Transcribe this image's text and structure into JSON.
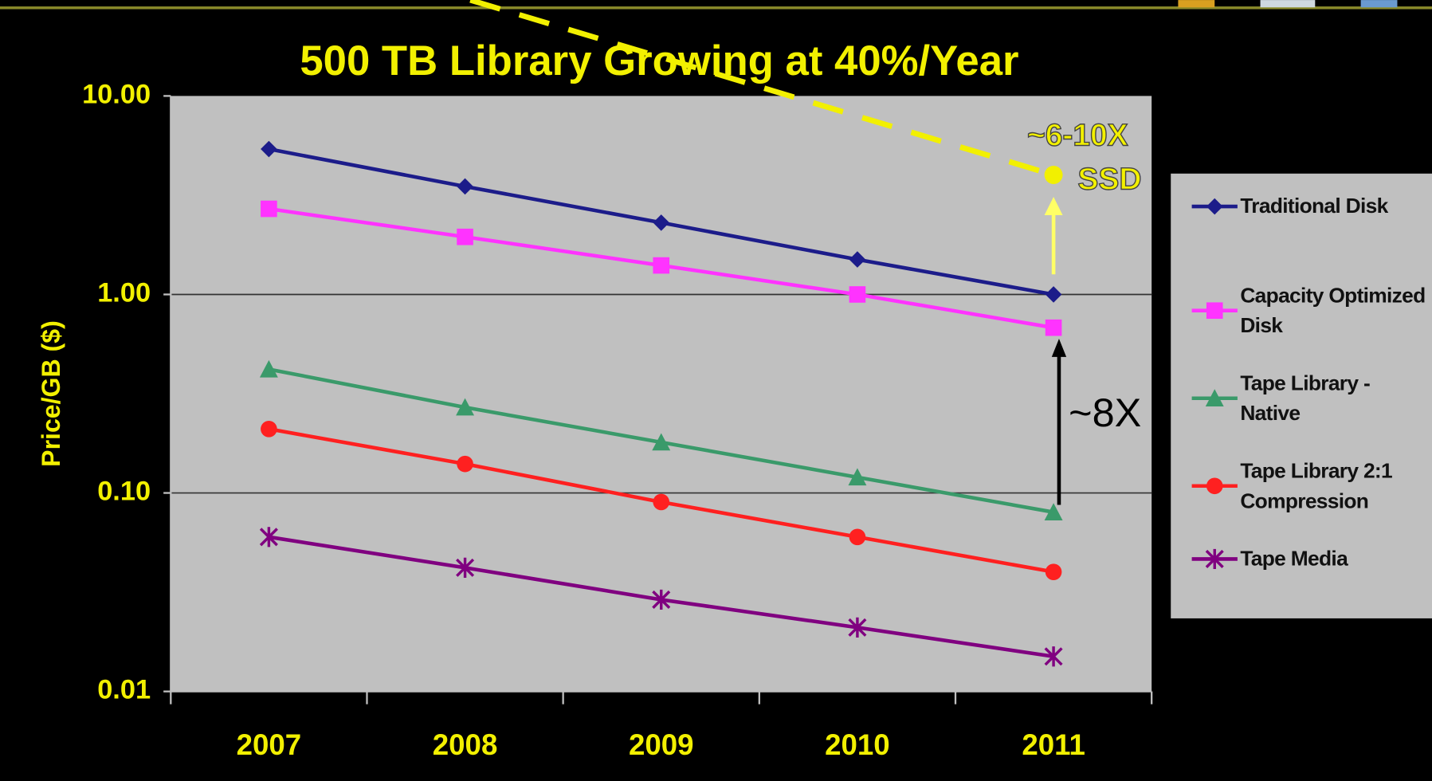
{
  "chart_data": {
    "type": "line",
    "title": "500 TB Library Growing at 40%/Year",
    "y_label": "Price/GB ($)",
    "categories": [
      "2007",
      "2008",
      "2009",
      "2010",
      "2011"
    ],
    "series": [
      {
        "name": "Traditional Disk",
        "color": "#1c1c8a",
        "marker": "diamond",
        "values": [
          5.4,
          3.5,
          2.3,
          1.5,
          1.0
        ]
      },
      {
        "name": "Capacity Optimized Disk",
        "color": "#ff33ff",
        "marker": "square",
        "values": [
          2.7,
          1.95,
          1.4,
          1.0,
          0.68
        ]
      },
      {
        "name": "Tape Library - Native",
        "color": "#3a9a6a",
        "marker": "triangle",
        "values": [
          0.42,
          0.27,
          0.18,
          0.12,
          0.08
        ]
      },
      {
        "name": "Tape Library 2:1 Compression",
        "color": "#ff2020",
        "marker": "circle",
        "values": [
          0.21,
          0.14,
          0.09,
          0.06,
          0.04
        ]
      },
      {
        "name": "Tape Media",
        "color": "#800080",
        "marker": "star",
        "values": [
          0.06,
          0.042,
          0.029,
          0.021,
          0.015
        ]
      }
    ],
    "log_scale": true,
    "ylim": [
      0.01,
      10
    ],
    "yticks": [
      {
        "value": 10,
        "label": "10.00"
      },
      {
        "value": 1,
        "label": "1.00"
      },
      {
        "value": 0.1,
        "label": "0.10"
      },
      {
        "value": 0.01,
        "label": "0.01"
      }
    ],
    "grid": true,
    "legend": "right",
    "annotations": [
      {
        "text": "~6-10X"
      },
      {
        "text": "SSD",
        "value": 4
      },
      {
        "text": "~8X"
      }
    ]
  }
}
